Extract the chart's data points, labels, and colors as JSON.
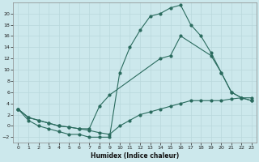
{
  "xlabel": "Humidex (Indice chaleur)",
  "bg_color": "#cce8ec",
  "line_color": "#2a6b5e",
  "grid_color": "#b8d8dc",
  "xlim": [
    -0.5,
    23.5
  ],
  "ylim": [
    -3,
    22
  ],
  "xticks": [
    0,
    1,
    2,
    3,
    4,
    5,
    6,
    7,
    8,
    9,
    10,
    11,
    12,
    13,
    14,
    15,
    16,
    17,
    18,
    19,
    20,
    21,
    22,
    23
  ],
  "yticks": [
    -2,
    0,
    2,
    4,
    6,
    8,
    10,
    12,
    14,
    16,
    18,
    20
  ],
  "line1_x": [
    0,
    1,
    2,
    3,
    4,
    5,
    6,
    7,
    8,
    9,
    10,
    11,
    12,
    13,
    14,
    15,
    16,
    17,
    18,
    19,
    20,
    21,
    22,
    23
  ],
  "line1_y": [
    3,
    1,
    0,
    -0.5,
    -1,
    -1.5,
    -1.5,
    -2,
    -2,
    -2,
    9.5,
    14,
    17,
    19.5,
    20,
    21,
    21.5,
    18,
    16,
    13,
    9.5,
    6,
    5,
    4.5
  ],
  "line2_x": [
    0,
    1,
    2,
    3,
    4,
    5,
    6,
    7,
    8,
    9,
    14,
    15,
    16,
    19,
    20,
    21,
    22,
    23
  ],
  "line2_y": [
    3,
    1.5,
    1,
    0.5,
    0,
    -0.2,
    -0.5,
    -0.5,
    3.5,
    5.5,
    12,
    12.5,
    16,
    12.5,
    9.5,
    6,
    5,
    4.5
  ],
  "line3_x": [
    0,
    1,
    2,
    3,
    4,
    5,
    6,
    7,
    8,
    9,
    10,
    11,
    12,
    13,
    14,
    15,
    16,
    17,
    18,
    19,
    20,
    21,
    22,
    23
  ],
  "line3_y": [
    3,
    1.5,
    1,
    0.5,
    0,
    -0.2,
    -0.5,
    -0.8,
    -1.2,
    -1.5,
    0,
    1,
    2,
    2.5,
    3,
    3.5,
    4,
    4.5,
    4.5,
    4.5,
    4.5,
    4.8,
    5,
    5
  ]
}
